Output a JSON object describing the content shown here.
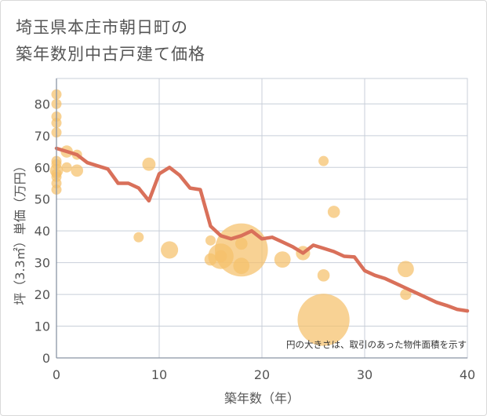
{
  "title": {
    "line1": "埼玉県本庄市朝日町の",
    "line2": "築年数別中古戸建て価格"
  },
  "chart_data": {
    "type": "scatter",
    "title": "埼玉県本庄市朝日町の築年数別中古戸建て価格",
    "xlabel": "築年数（年）",
    "ylabel": "坪（3.3㎡）単価（万円）",
    "xlim": [
      0,
      40
    ],
    "ylim": [
      0,
      88
    ],
    "xticks": [
      0,
      10,
      20,
      30,
      40
    ],
    "yticks": [
      0,
      10,
      20,
      30,
      40,
      50,
      60,
      70,
      80
    ],
    "grid": true,
    "annotation": "円の大きさは、取引のあった物件面積を示す",
    "colors": {
      "points": "#f5c06b",
      "line": "#d9705a",
      "grid": "#c8cfd9"
    },
    "scatter": [
      {
        "x": 0,
        "y": 83,
        "size": 1
      },
      {
        "x": 0,
        "y": 80,
        "size": 1
      },
      {
        "x": 0,
        "y": 76,
        "size": 1
      },
      {
        "x": 0,
        "y": 74,
        "size": 1
      },
      {
        "x": 0,
        "y": 71,
        "size": 1
      },
      {
        "x": 0,
        "y": 62,
        "size": 1
      },
      {
        "x": 0,
        "y": 61,
        "size": 1
      },
      {
        "x": 0,
        "y": 59,
        "size": 1.3
      },
      {
        "x": 0,
        "y": 58,
        "size": 1
      },
      {
        "x": 0,
        "y": 57,
        "size": 1
      },
      {
        "x": 0,
        "y": 55,
        "size": 1
      },
      {
        "x": 0,
        "y": 53,
        "size": 1
      },
      {
        "x": 1,
        "y": 65,
        "size": 1.2
      },
      {
        "x": 1,
        "y": 60,
        "size": 1
      },
      {
        "x": 2,
        "y": 64,
        "size": 1
      },
      {
        "x": 2,
        "y": 59,
        "size": 1.2
      },
      {
        "x": 8,
        "y": 38,
        "size": 1
      },
      {
        "x": 9,
        "y": 61,
        "size": 1.3
      },
      {
        "x": 11,
        "y": 34,
        "size": 1.7
      },
      {
        "x": 15,
        "y": 37,
        "size": 1
      },
      {
        "x": 15,
        "y": 31,
        "size": 1.2
      },
      {
        "x": 16,
        "y": 32,
        "size": 2.5
      },
      {
        "x": 16,
        "y": 32,
        "size": 1.2
      },
      {
        "x": 18,
        "y": 34,
        "size": 5.2
      },
      {
        "x": 18,
        "y": 36,
        "size": 1.2
      },
      {
        "x": 18,
        "y": 29,
        "size": 1.6
      },
      {
        "x": 22,
        "y": 31,
        "size": 1.6
      },
      {
        "x": 24,
        "y": 33,
        "size": 1.4
      },
      {
        "x": 26,
        "y": 62,
        "size": 1
      },
      {
        "x": 26,
        "y": 26,
        "size": 1.2
      },
      {
        "x": 26,
        "y": 12,
        "size": 5.1
      },
      {
        "x": 27,
        "y": 46,
        "size": 1.2
      },
      {
        "x": 34,
        "y": 28,
        "size": 1.6
      },
      {
        "x": 34,
        "y": 20,
        "size": 1.1
      }
    ],
    "trend": {
      "x": [
        0,
        1,
        2,
        3,
        4,
        5,
        6,
        7,
        8,
        9,
        10,
        11,
        12,
        13,
        14,
        15,
        16,
        17,
        18,
        19,
        20,
        21,
        22,
        23,
        24,
        25,
        26,
        27,
        28,
        29,
        30,
        31,
        32,
        33,
        34,
        35,
        36,
        37,
        38,
        39,
        40
      ],
      "y": [
        66,
        65,
        64,
        61.5,
        60.5,
        59.5,
        55,
        55,
        53.5,
        49.5,
        58,
        60,
        57.5,
        53.5,
        53,
        41.5,
        38.5,
        37.5,
        38.5,
        40,
        37.5,
        38,
        36.5,
        35,
        33,
        35.5,
        34.5,
        33.5,
        32,
        31.8,
        27.5,
        26,
        25,
        23.5,
        22,
        20.5,
        19,
        17.5,
        16.5,
        15.3,
        14.8
      ]
    }
  }
}
